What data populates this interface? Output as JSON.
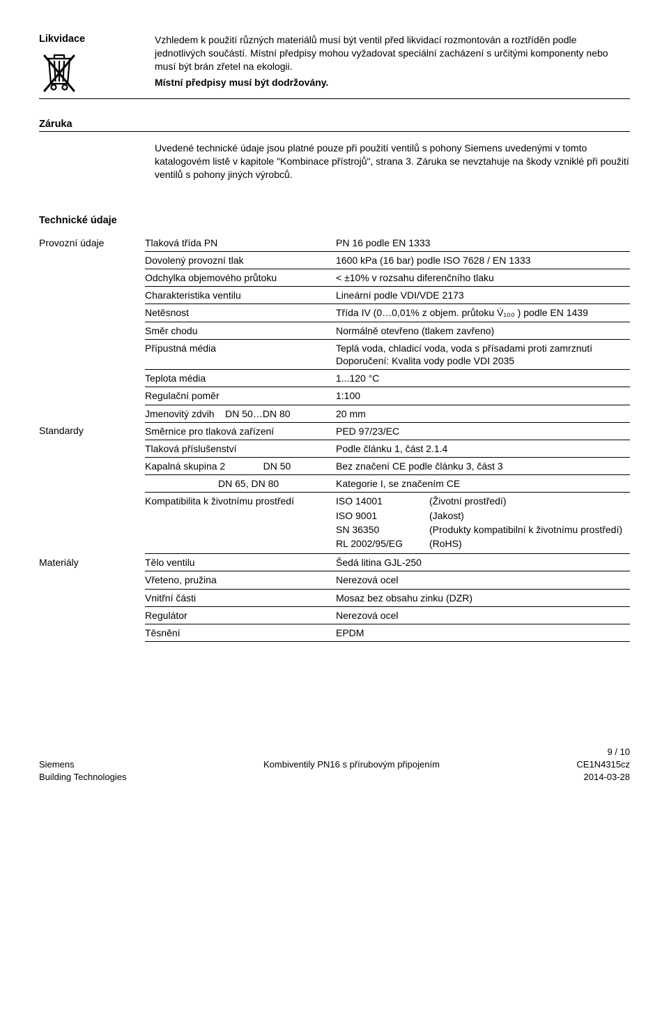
{
  "disposal": {
    "title": "Likvidace",
    "para": "Vzhledem k použití různých materiálů musí být ventil před likvidací rozmontován a roztříděn podle jednotlivých součástí. Místní předpisy mohou vyžadovat speciální zacházení s určitými komponenty nebo musí být brán zřetel na ekologii.",
    "bold": "Místní předpisy musí být dodržovány."
  },
  "warranty": {
    "title": "Záruka",
    "para": "Uvedené technické údaje jsou platné pouze při použití ventilů s pohony Siemens uvedenými v tomto katalogovém listě v kapitole \"Kombinace přístrojů\", strana 3. Záruka se nevztahuje na škody vzniklé při použití ventilů s pohony jiných výrobců."
  },
  "tech": {
    "title": "Technické údaje",
    "groups": [
      {
        "label": "Provozní údaje",
        "rows": [
          {
            "k": "Tlaková třída PN",
            "v": "PN 16 podle EN 1333"
          },
          {
            "k": "Dovolený provozní tlak",
            "v": "1600 kPa (16 bar) podle ISO 7628 / EN 1333"
          },
          {
            "k": "Odchylka objemového průtoku",
            "v": "< ±10% v rozsahu diferenčního tlaku"
          },
          {
            "k": "Charakteristika ventilu",
            "v": "Lineární podle VDI/VDE 2173"
          },
          {
            "k": "Netěsnost",
            "v": "Třída IV (0…0,01% z objem. průtoku V̇₁₀₀ ) podle EN 1439"
          },
          {
            "k": "Směr chodu",
            "v": "Normálně otevřeno (tlakem zavřeno)"
          },
          {
            "k": "Přípustná média",
            "v": "Teplá voda, chladicí voda, voda s přísadami proti zamrznutí\nDoporučení: Kvalita vody podle VDI 2035"
          },
          {
            "k": "Teplota média",
            "v": "1...120 °C"
          },
          {
            "k": "Regulační poměr",
            "v": "1:100"
          },
          {
            "k": "Jmenovitý zdvih    DN 50…DN 80",
            "v": "20 mm"
          }
        ]
      },
      {
        "label": "Standardy",
        "rows": [
          {
            "k": "Směrnice pro tlaková zařízení",
            "v": "PED 97/23/EC"
          },
          {
            "k": "Tlaková příslušenství",
            "v": "Podle článku 1, část 2.1.4"
          },
          {
            "k": "Kapalná skupina 2              DN 50",
            "v": "Bez značení CE podle článku 3, část 3"
          },
          {
            "k": "                           DN 65, DN 80",
            "v": "Kategorie I, se značením CE"
          }
        ],
        "compat_key": "Kompatibilita k životnímu prostředí",
        "compat_rows": [
          {
            "a": "ISO 14001",
            "b": "(Životní prostředí)"
          },
          {
            "a": "ISO 9001",
            "b": "(Jakost)"
          },
          {
            "a": "SN 36350",
            "b": "(Produkty kompatibilní k životnímu prostředí)"
          },
          {
            "a": "RL 2002/95/EG",
            "b": "(RoHS)"
          }
        ]
      },
      {
        "label": "Materiály",
        "rows": [
          {
            "k": "Tělo ventilu",
            "v": "Šedá litina GJL-250"
          },
          {
            "k": "Vřeteno, pružina",
            "v": "Nerezová ocel"
          },
          {
            "k": "Vnitřní části",
            "v": "Mosaz bez obsahu zinku (DZR)"
          },
          {
            "k": "Regulátor",
            "v": "Nerezová ocel"
          },
          {
            "k": "Těsnění",
            "v": "EPDM"
          }
        ]
      }
    ]
  },
  "footer": {
    "page": "9 / 10",
    "left1": "Siemens",
    "left2": "Building Technologies",
    "center": "Kombiventily PN16 s přírubovým připojením",
    "right1": "CE1N4315cz",
    "right2": "2014-03-28"
  }
}
